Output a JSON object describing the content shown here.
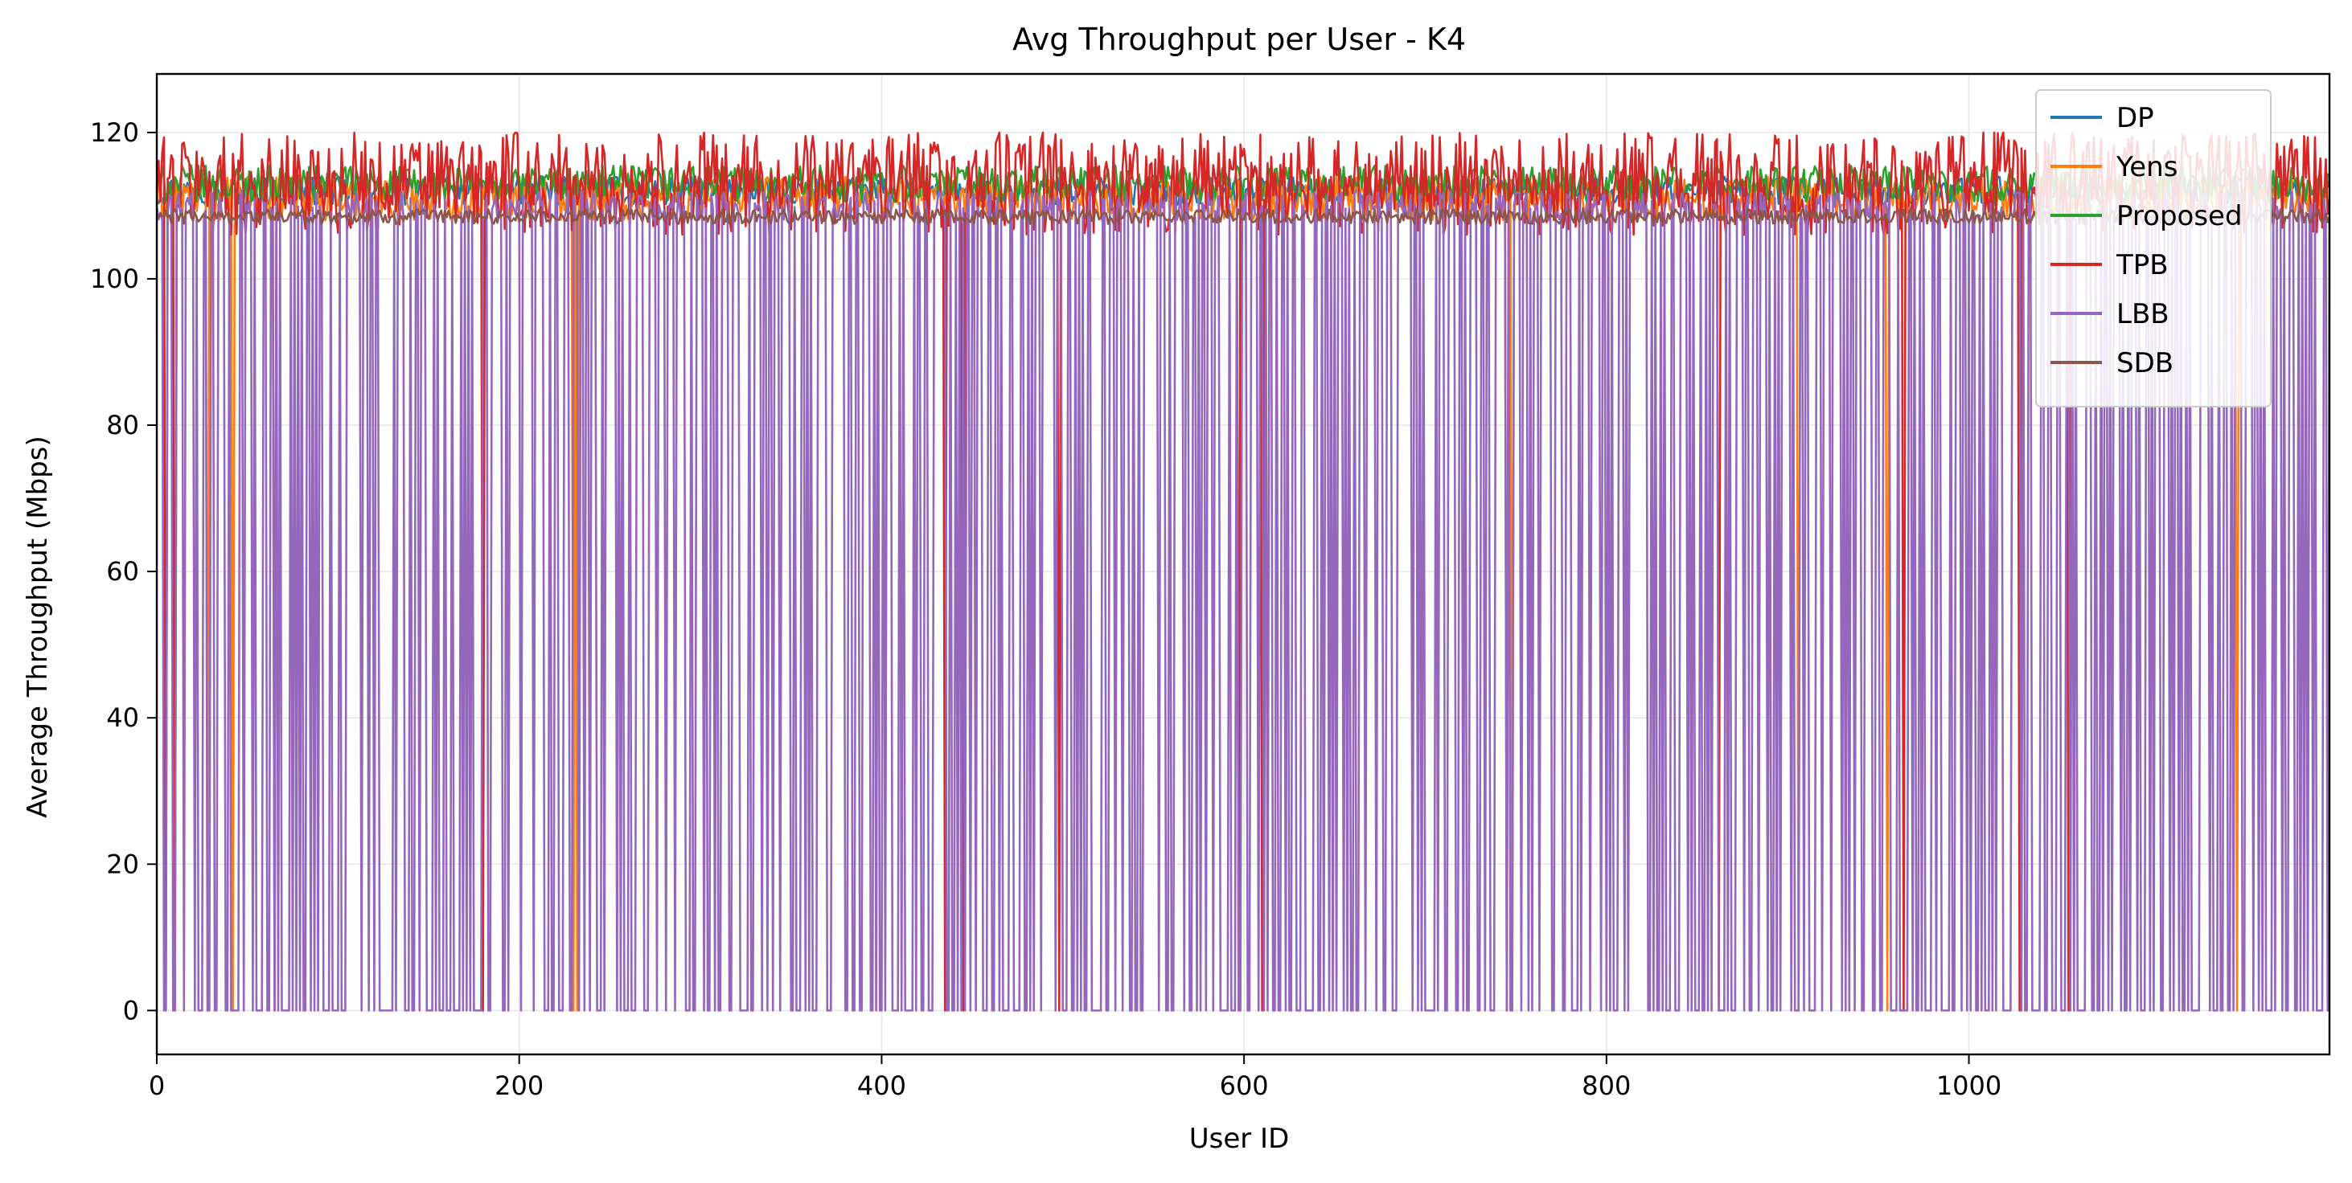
{
  "chart_data": {
    "type": "line",
    "title": "Avg Throughput per User - K4",
    "xlabel": "User ID",
    "ylabel": "Average Throughput (Mbps)",
    "xlim": [
      0,
      1199
    ],
    "ylim": [
      -6,
      128
    ],
    "xticks": [
      0,
      200,
      400,
      600,
      800,
      1000
    ],
    "yticks": [
      0,
      20,
      40,
      60,
      80,
      100,
      120
    ],
    "grid": true,
    "legend_position": "top-right",
    "n_users": 1200,
    "series": [
      {
        "name": "DP",
        "color": "#1f77b4",
        "base": 112,
        "amp": 2.0,
        "zero_fraction": 0.0,
        "zero_users": []
      },
      {
        "name": "Yens",
        "color": "#ff7f0e",
        "base": 111,
        "amp": 3.0,
        "zero_fraction": 0.0,
        "zero_users": [
          28,
          42,
          230,
          232,
          397,
          748,
          906,
          955,
          1148
        ]
      },
      {
        "name": "Proposed",
        "color": "#2ca02c",
        "base": 113,
        "amp": 2.5,
        "zero_fraction": 0.0,
        "zero_users": []
      },
      {
        "name": "TPB",
        "color": "#d62728",
        "base": 113,
        "amp": 7.0,
        "zero_fraction": 0.0,
        "zero_users": [
          5,
          10,
          65,
          180,
          435,
          445,
          498,
          597,
          610,
          745,
          862,
          964,
          1028,
          1055
        ]
      },
      {
        "name": "LBB",
        "color": "#9467bd",
        "base": 110,
        "amp": 2.0,
        "zero_fraction": 0.5,
        "zero_users": [
          125,
          126,
          127,
          128,
          129,
          130
        ]
      },
      {
        "name": "SDB",
        "color": "#8c564b",
        "base": 108.5,
        "amp": 1.0,
        "zero_fraction": 0.0,
        "zero_users": []
      }
    ]
  }
}
